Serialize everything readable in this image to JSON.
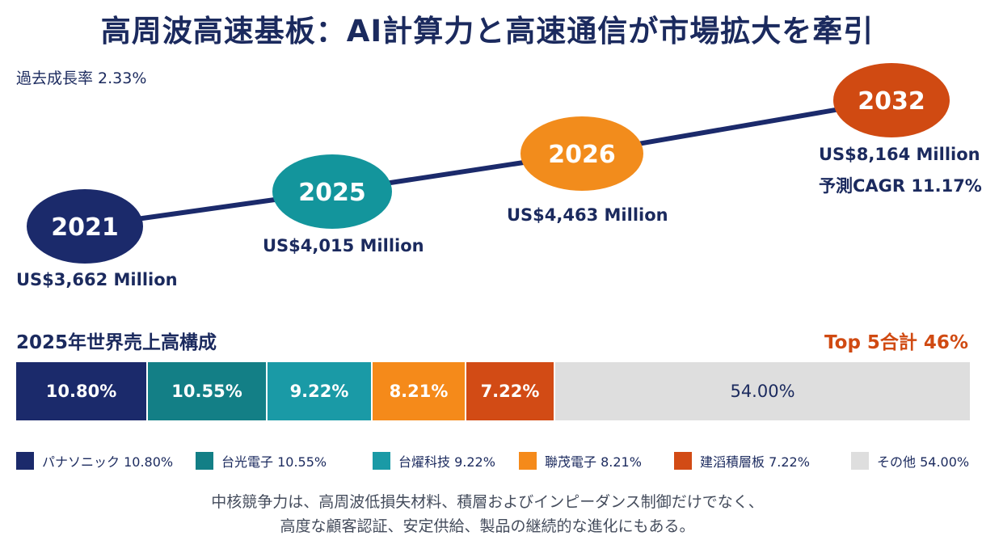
{
  "title": "高周波高速基板：AI計算力と高速通信が市場拡大を牽引",
  "past_cagr": "過去成長率 2.33%",
  "chart_data": [
    {
      "type": "line",
      "points": [
        {
          "year": "2021",
          "value_label": "US$3,662 Million",
          "value": 3662,
          "color": "#1b2a6b"
        },
        {
          "year": "2025",
          "value_label": "US$4,015 Million",
          "value": 4015,
          "color": "#13959c"
        },
        {
          "year": "2026",
          "value_label": "US$4,463 Million",
          "value": 4463,
          "color": "#f28c1c"
        },
        {
          "year": "2032",
          "value_label": "US$8,164 Million",
          "value": 8164,
          "color": "#d04a12"
        }
      ],
      "forecast_cagr": "予測CAGR 11.17%"
    },
    {
      "type": "bar",
      "title": "2025年世界売上高構成",
      "total_note": "Top 5合計 46%",
      "segments": [
        {
          "name": "パナソニック",
          "value": 10.8,
          "label": "10.80%",
          "legend": "パナソニック 10.80%",
          "color": "#1b2a6b"
        },
        {
          "name": "台光電子",
          "value": 10.55,
          "label": "10.55%",
          "legend": "台光電子 10.55%",
          "color": "#137f86"
        },
        {
          "name": "台燿科技",
          "value": 9.22,
          "label": "9.22%",
          "legend": "台燿科技 9.22%",
          "color": "#1a9aa6"
        },
        {
          "name": "聯茂電子",
          "value": 8.21,
          "label": "8.21%",
          "legend": "聯茂電子 8.21%",
          "color": "#f58a1a"
        },
        {
          "name": "建滔積層板",
          "value": 7.22,
          "label": "7.22%",
          "legend": "建滔積層板 7.22%",
          "color": "#d24b15"
        },
        {
          "name": "その他",
          "value": 54.0,
          "label": "54.00%",
          "legend": "その他 54.00%",
          "color": "#dedede"
        }
      ]
    }
  ],
  "footnote": {
    "line1": "中核競争力は、高周波低損失材料、積層およびインピーダンス制御だけでなく、",
    "line2": "高度な顧客認証、安定供給、製品の継続的な進化にもある。"
  }
}
